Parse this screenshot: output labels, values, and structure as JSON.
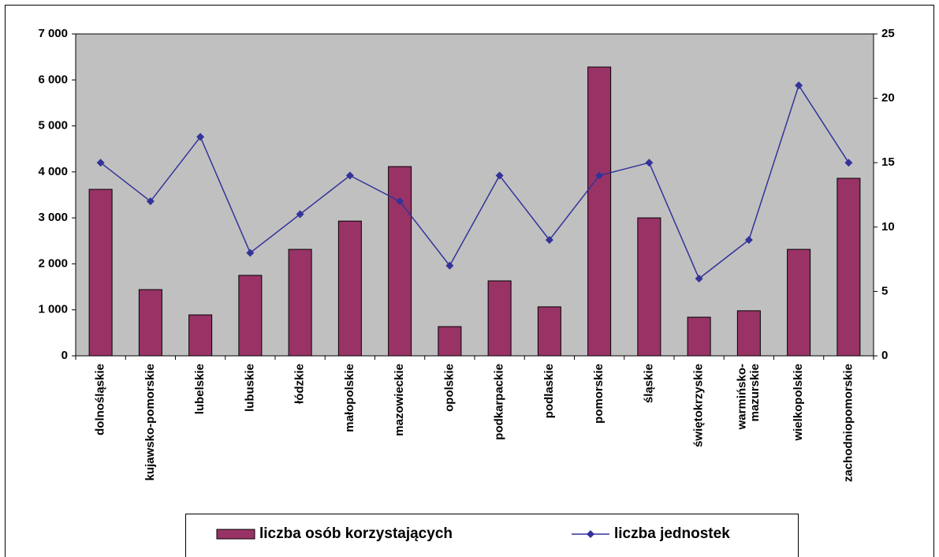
{
  "chart_data": {
    "type": "bar",
    "categories": [
      "dolnośląskie",
      "kujawsko-pomorskie",
      "lubelskie",
      "lubuskie",
      "łódzkie",
      "małopolskie",
      "mazowieckie",
      "opolskie",
      "podkarpackie",
      "podlaskie",
      "pomorskie",
      "śląskie",
      "świętokrzyskie",
      "warmińsko-\nmazurskie",
      "wielkopolskie",
      "zachodniopomorskie"
    ],
    "series": [
      {
        "name": "liczba osób korzystających",
        "type": "bar",
        "color": "#993366",
        "values": [
          3620,
          1440,
          890,
          1750,
          2315,
          2930,
          4115,
          635,
          1630,
          1065,
          6280,
          3000,
          840,
          980,
          2315,
          3860
        ]
      },
      {
        "name": "liczba jednostek",
        "type": "line",
        "axis": "y2",
        "color": "#333399",
        "values": [
          15,
          12,
          17,
          8,
          11,
          14,
          12,
          7,
          14,
          9,
          14,
          15,
          6,
          9,
          21,
          15
        ]
      }
    ],
    "ylim": [
      0,
      7000
    ],
    "yticks": [
      0,
      {
        "value": 1000,
        "label": "1 000"
      },
      {
        "value": 2000,
        "label": "2 000"
      },
      {
        "value": 3000,
        "label": "3 000"
      },
      {
        "value": 4000,
        "label": "4 000"
      },
      {
        "value": 5000,
        "label": "5 000"
      },
      {
        "value": 6000,
        "label": "6 000"
      },
      {
        "value": 7000,
        "label": "7 000"
      }
    ],
    "y2lim": [
      0,
      25
    ],
    "y2ticks": [
      0,
      5,
      10,
      15,
      20,
      25
    ],
    "plot_background": "#c0c0c0",
    "legend": "bottom"
  }
}
